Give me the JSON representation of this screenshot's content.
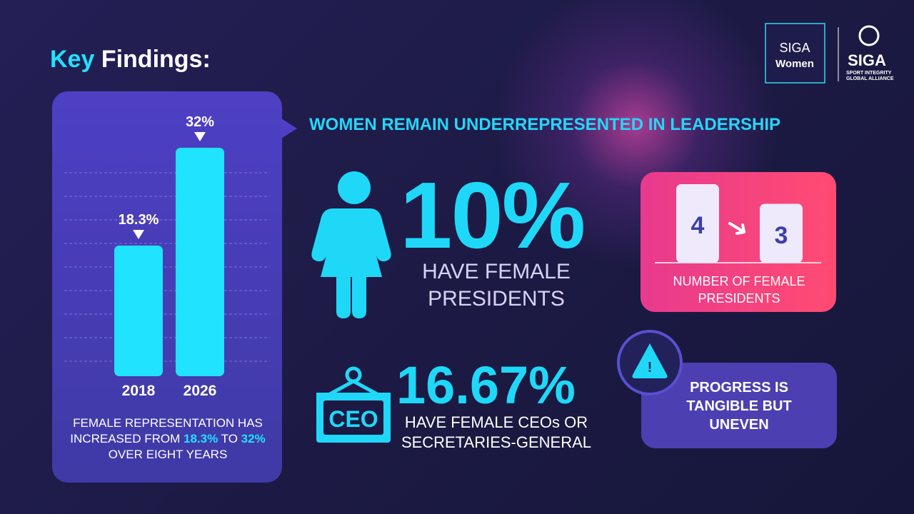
{
  "header": {
    "title_parts": [
      "Key",
      "Findings:"
    ],
    "headline": "WOMEN REMAIN UNDERREPRESENTED IN LEADERSHIP"
  },
  "logos": {
    "siga_women": [
      "SIGA",
      "Women"
    ],
    "siga": {
      "name": "SIGA",
      "tagline": [
        "SPORT INTEGRITY",
        "GLOBAL ALLIANCE"
      ]
    }
  },
  "chart_data": [
    {
      "type": "bar",
      "categories": [
        "2018",
        "2026"
      ],
      "values": [
        18.3,
        32
      ],
      "value_labels": [
        "18.3%",
        "32%"
      ],
      "color": "#1fe3ff"
    },
    {
      "type": "bar",
      "title": "NUMBER OF FEMALE PRESIDENTS",
      "categories": [
        null,
        null
      ],
      "values": [
        4,
        3
      ],
      "color": "#eeeafc"
    }
  ],
  "summary": [
    "FEMALE REPRESENTATION HAS INCREASED FROM",
    "18.3%",
    "TO",
    "32%",
    "OVER EIGHT YEARS"
  ],
  "stats": [
    {
      "value": "10%",
      "label": "HAVE FEMALE PRESIDENTS"
    },
    {
      "value": "16.67%",
      "label": "HAVE FEMALE CEOs OR SECRETARIES-GENERAL",
      "icon": "CEO"
    }
  ],
  "callout": {
    "icon": "!",
    "text": "PROGRESS IS TANGIBLE BUT UNEVEN"
  }
}
